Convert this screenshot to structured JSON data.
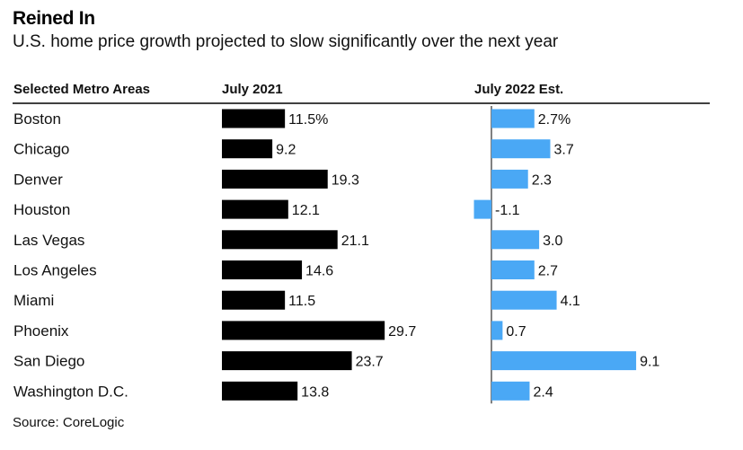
{
  "title": "Reined In",
  "subtitle": "U.S. home price growth projected to slow significantly over the next year",
  "source": "Source: CoreLogic",
  "chart_data": {
    "type": "bar",
    "layout": "two-panel horizontal bar table",
    "row_header": "Selected Metro Areas",
    "categories": [
      "Boston",
      "Chicago",
      "Denver",
      "Houston",
      "Las Vegas",
      "Los Angeles",
      "Miami",
      "Phoenix",
      "San Diego",
      "Washington D.C."
    ],
    "series": [
      {
        "name": "July 2021",
        "values": [
          11.5,
          9.2,
          19.3,
          12.1,
          21.1,
          14.6,
          11.5,
          29.7,
          23.7,
          13.8
        ],
        "labels": [
          "11.5%",
          "9.2",
          "19.3",
          "12.1",
          "21.1",
          "14.6",
          "11.5",
          "29.7",
          "23.7",
          "13.8"
        ],
        "color": "#000000"
      },
      {
        "name": "July 2022 Est.",
        "values": [
          2.7,
          3.7,
          2.3,
          -1.1,
          3.0,
          2.7,
          4.1,
          0.7,
          9.1,
          2.4
        ],
        "labels": [
          "2.7%",
          "3.7",
          "2.3",
          "-1.1",
          "3.0",
          "2.7",
          "4.1",
          "0.7",
          "9.1",
          "2.4"
        ],
        "color": "#4aa8f5"
      }
    ],
    "grid": false,
    "legend": "none"
  }
}
